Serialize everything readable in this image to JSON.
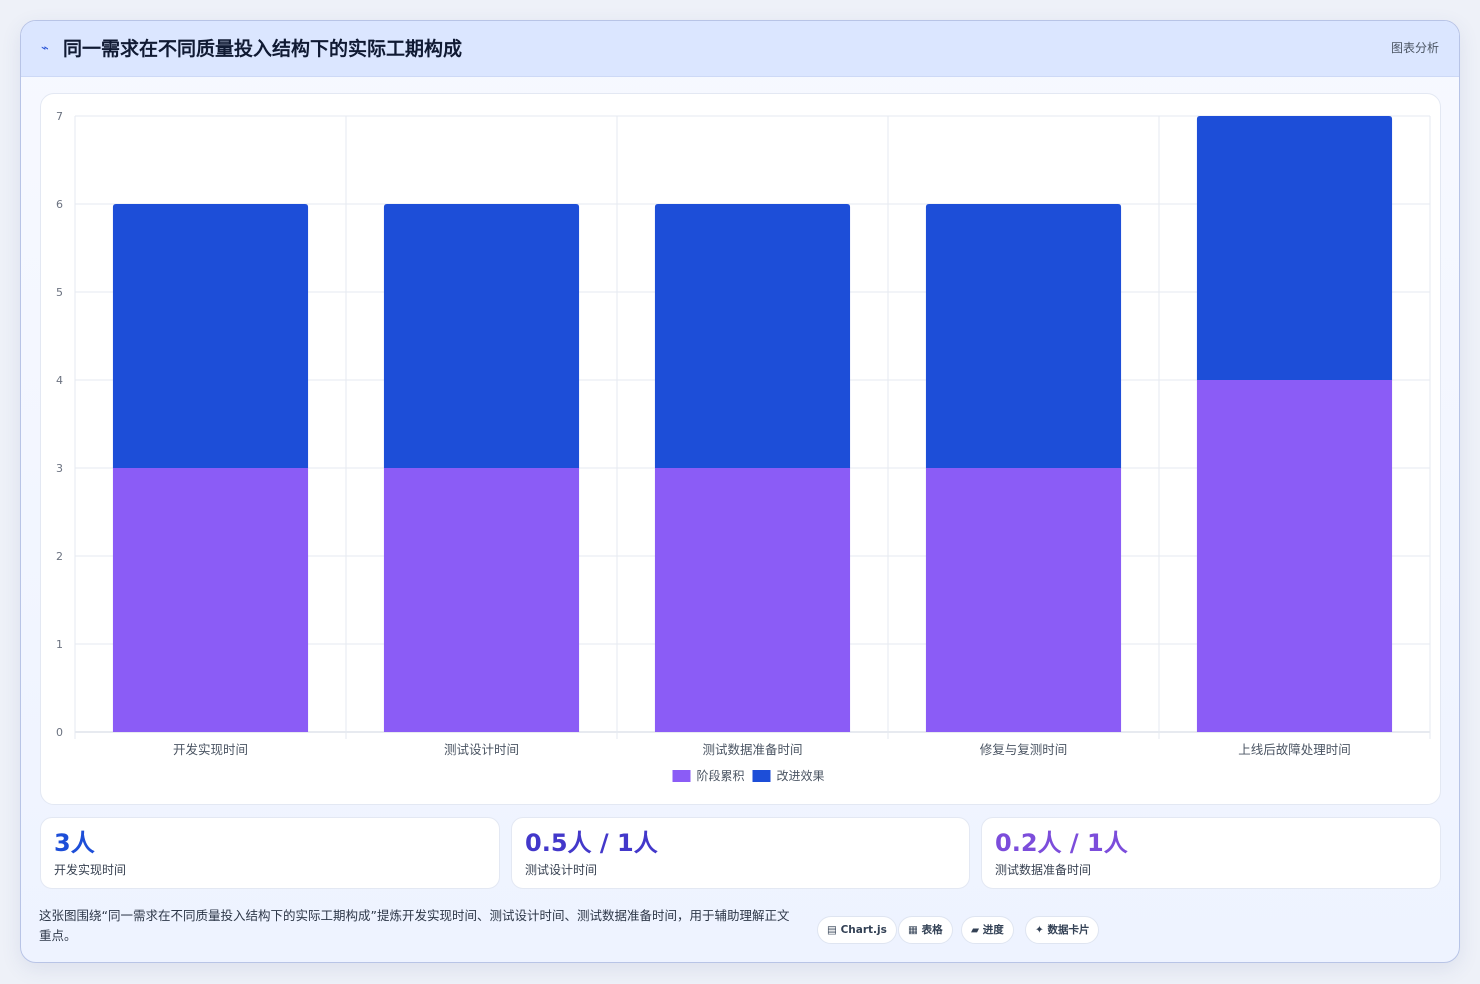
{
  "header": {
    "icon": "chart-trend-icon",
    "title": "同一需求在不同质量投入结构下的实际工期构成",
    "action_label": "图表分析"
  },
  "chart_data": {
    "type": "bar",
    "stacked": true,
    "categories": [
      "开发实现时间",
      "测试设计时间",
      "测试数据准备时间",
      "修复与复测时间",
      "上线后故障处理时间"
    ],
    "series": [
      {
        "name": "阶段累积",
        "values": [
          3,
          3,
          3,
          3,
          4
        ],
        "color": "#8b5cf6"
      },
      {
        "name": "改进效果",
        "values": [
          3,
          3,
          3,
          3,
          3
        ],
        "color": "#1d4ed8"
      }
    ],
    "ylim": [
      0,
      7
    ],
    "yticks": [
      "0",
      "1",
      "2",
      "3",
      "4",
      "5",
      "6",
      "7"
    ],
    "grid": true,
    "legend_position": "bottom"
  },
  "stats": [
    {
      "value": "3人",
      "label": "开发实现时间",
      "color": "#1d4ed8"
    },
    {
      "value": "0.5人 / 1人",
      "label": "测试设计时间",
      "color": "#4338ca"
    },
    {
      "value": "0.2人 / 1人",
      "label": "测试数据准备时间",
      "color": "#7c4ddb"
    }
  ],
  "caption": "这张图围绕“同一需求在不同质量投入结构下的实际工期构成”提炼开发实现时间、测试设计时间、测试数据准备时间，用于辅助理解正文重点。",
  "tags": [
    {
      "icon": "▤",
      "label": "Chart.js"
    },
    {
      "icon": "▦",
      "label": "表格"
    },
    {
      "icon": "▰",
      "label": "进度"
    },
    {
      "icon": "✦",
      "label": "数据卡片"
    }
  ],
  "colors": {
    "accent": "#1d4ed8",
    "secondary": "#8b5cf6",
    "header_bg": "#dbe6ff"
  }
}
